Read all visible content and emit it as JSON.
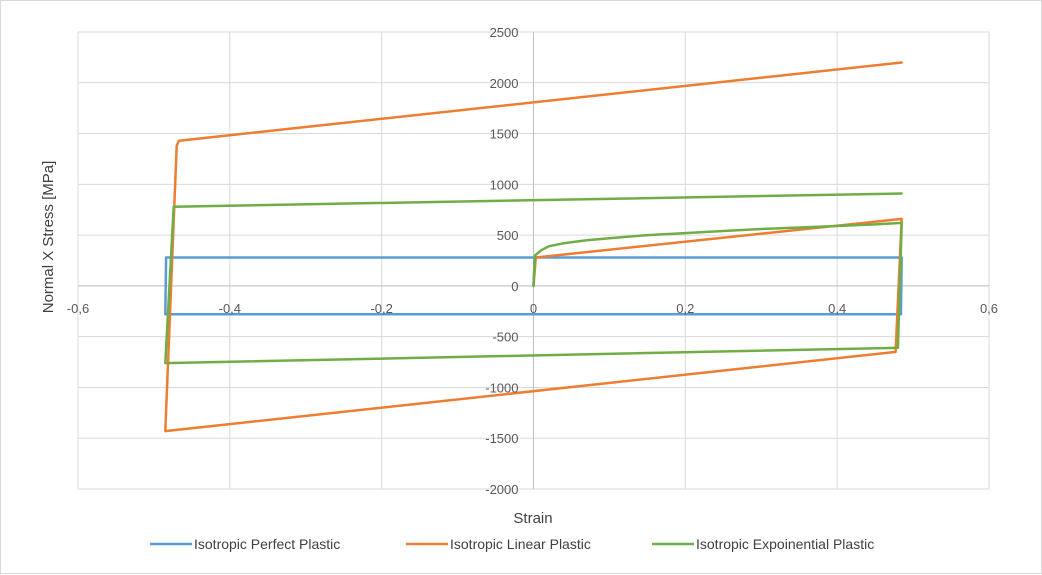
{
  "chart_data": {
    "type": "line",
    "title": "",
    "xlabel": "Strain",
    "ylabel": "Normal X Stress [MPa]",
    "xlim": [
      -0.6,
      0.6
    ],
    "ylim": [
      -2000,
      2500
    ],
    "x_ticks": [
      -0.6,
      -0.4,
      -0.2,
      0,
      0.2,
      0.4,
      0.6
    ],
    "x_tick_labels": [
      "-0,6",
      "-0,4",
      "-0,2",
      "0",
      "0,2",
      "0,4",
      "0,6"
    ],
    "y_ticks": [
      -2000,
      -1500,
      -1000,
      -500,
      0,
      500,
      1000,
      1500,
      2000,
      2500
    ],
    "y_tick_labels": [
      "-2000",
      "-1500",
      "-1000",
      "-500",
      "0",
      "500",
      "1000",
      "1500",
      "2000",
      "2500"
    ],
    "grid": true,
    "legend_position": "bottom",
    "series": [
      {
        "name": "Isotropic Perfect Plastic",
        "color": "#5b9bd5",
        "points": [
          [
            0,
            0
          ],
          [
            0.0015,
            280
          ],
          [
            0.485,
            280
          ],
          [
            0.484,
            -280
          ],
          [
            -0.485,
            -280
          ],
          [
            -0.484,
            280
          ],
          [
            0.485,
            280
          ]
        ]
      },
      {
        "name": "Isotropic Linear Plastic",
        "color": "#ed7d31",
        "points": [
          [
            0,
            0
          ],
          [
            0.003,
            280
          ],
          [
            0.485,
            660
          ],
          [
            0.477,
            -650
          ],
          [
            -0.485,
            -1430
          ],
          [
            -0.47,
            1380
          ],
          [
            -0.467,
            1430
          ],
          [
            0.485,
            2200
          ]
        ]
      },
      {
        "name": "Isotropic Expoinential Plastic",
        "color": "#70ad47",
        "points": [
          [
            0,
            0
          ],
          [
            0.002,
            300
          ],
          [
            0.01,
            350
          ],
          [
            0.02,
            390
          ],
          [
            0.04,
            420
          ],
          [
            0.07,
            450
          ],
          [
            0.1,
            470
          ],
          [
            0.15,
            500
          ],
          [
            0.2,
            520
          ],
          [
            0.25,
            540
          ],
          [
            0.3,
            560
          ],
          [
            0.35,
            575
          ],
          [
            0.4,
            590
          ],
          [
            0.45,
            605
          ],
          [
            0.485,
            620
          ],
          [
            0.48,
            -610
          ],
          [
            -0.485,
            -760
          ],
          [
            -0.474,
            780
          ],
          [
            0.485,
            910
          ]
        ]
      }
    ]
  }
}
